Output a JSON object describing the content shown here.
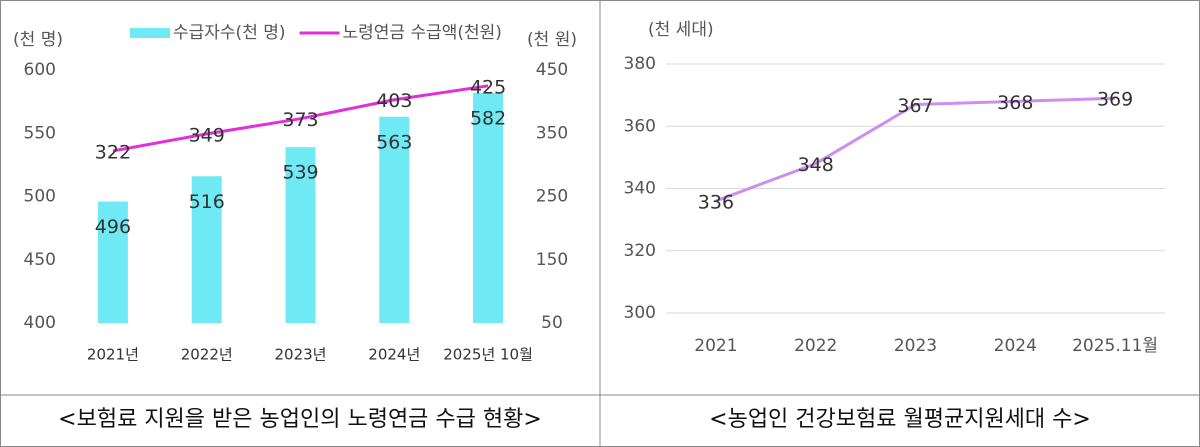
{
  "chart_data": [
    {
      "type": "combo",
      "y_label": "(천 명)",
      "y2_label": "(천 원)",
      "grid": false,
      "legend": "top",
      "categories": [
        "2021년",
        "2022년",
        "2023년",
        "2024년",
        "2025년 10월"
      ],
      "series": [
        {
          "name": "수급자수(천 명)",
          "type": "bar",
          "color": "#6fe9f3",
          "values": [
            496,
            516,
            539,
            563,
            582
          ]
        },
        {
          "name": "노령연금 수급액(천원)",
          "type": "line",
          "axis": "y2",
          "color": "#e22fd9",
          "values": [
            322,
            349,
            373,
            403,
            425
          ]
        }
      ],
      "ylim": [
        400,
        600
      ],
      "yticks": [
        400,
        450,
        500,
        550,
        600
      ],
      "y2lim": [
        50,
        450
      ],
      "y2ticks": [
        50,
        150,
        250,
        350,
        450
      ],
      "caption": "<보험료 지원을 받은 농업인의 노령연금 수급 현황>"
    },
    {
      "type": "line",
      "y_label": "(천 세대)",
      "grid": true,
      "categories": [
        "2021",
        "2022",
        "2023",
        "2024",
        "2025.11월"
      ],
      "series": [
        {
          "type": "line",
          "color": "#cc8ff0",
          "values": [
            336,
            348,
            367,
            368,
            369
          ]
        }
      ],
      "ylim": [
        300,
        380
      ],
      "yticks": [
        300,
        320,
        340,
        360,
        380
      ],
      "caption": "<농업인  건강보험료  월평균지원세대  수>"
    }
  ]
}
